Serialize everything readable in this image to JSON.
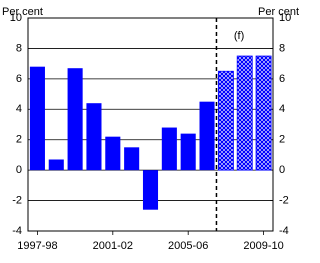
{
  "chart_data": {
    "type": "bar",
    "ylabel": "Per cent",
    "y2label": "Per cent",
    "annotation": "(f)",
    "categories": [
      "1997-98",
      null,
      null,
      null,
      "2001-02",
      null,
      null,
      null,
      "2005-06",
      null,
      null,
      null,
      "2009-10"
    ],
    "values": [
      6.8,
      0.7,
      6.7,
      4.4,
      2.2,
      1.5,
      -2.6,
      2.8,
      2.4,
      4.5,
      6.5,
      7.5,
      7.5
    ],
    "bar_styles": [
      "solid",
      "solid",
      "solid",
      "solid",
      "solid",
      "solid",
      "solid",
      "solid",
      "solid",
      "solid",
      "hatched",
      "hatched",
      "hatched"
    ],
    "color": "#0000ff",
    "ylim": [
      -4,
      10
    ],
    "yticks": [
      -4,
      -2,
      0,
      2,
      4,
      6,
      8,
      10
    ],
    "y2lim": [
      -4,
      10
    ],
    "y2ticks": [
      -4,
      -2,
      0,
      2,
      4,
      6,
      8,
      10
    ],
    "grid": true
  }
}
